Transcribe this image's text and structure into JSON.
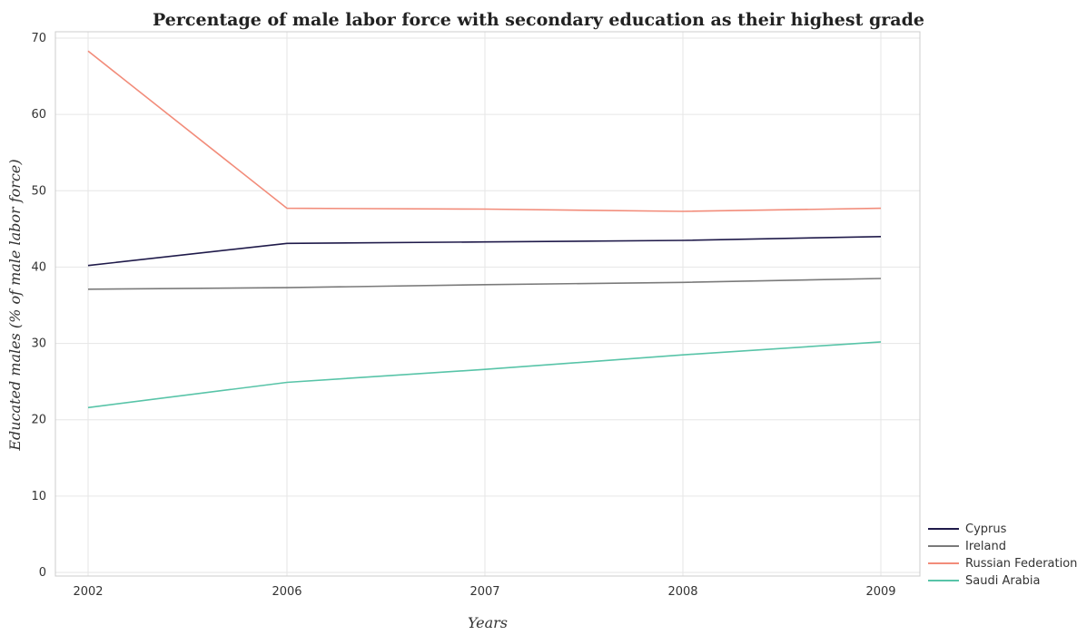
{
  "chart_data": {
    "type": "line",
    "title": "Percentage of male labor force with secondary education as their highest grade",
    "xlabel": "Years",
    "ylabel": "Educated males (% of male labor force)",
    "categories": [
      "2002",
      "2006",
      "2007",
      "2008",
      "2009"
    ],
    "ylim": [
      0,
      70
    ],
    "yticks": [
      "0",
      "10",
      "20",
      "30",
      "40",
      "50",
      "60",
      "70"
    ],
    "grid": true,
    "legend_position": "bottom-right",
    "series": [
      {
        "name": "Cyprus",
        "color": "#1f1a4a",
        "values": [
          40.2,
          43.1,
          43.3,
          43.5,
          44.0
        ]
      },
      {
        "name": "Ireland",
        "color": "#7a7a7a",
        "values": [
          37.1,
          37.3,
          37.7,
          38.0,
          38.5
        ]
      },
      {
        "name": "Russian Federation",
        "color": "#f28c7a",
        "values": [
          68.3,
          47.7,
          47.6,
          47.3,
          47.7
        ]
      },
      {
        "name": "Saudi Arabia",
        "color": "#58c4a8",
        "values": [
          21.6,
          24.9,
          26.6,
          28.5,
          30.2
        ]
      }
    ]
  }
}
